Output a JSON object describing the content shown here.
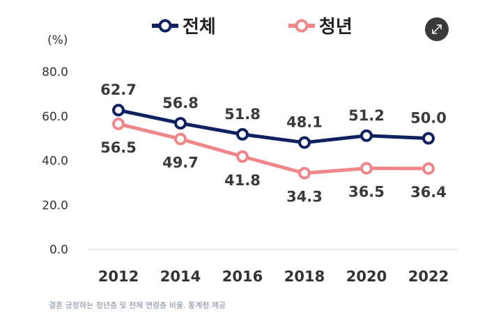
{
  "unit_label": "(%)",
  "caption": "결혼 긍정하는 청년층 및 전체 연령층 비율. 통계청 제공",
  "expand_icon": "expand-icon",
  "colors": {
    "total": "#0f2160",
    "youth": "#f0868a"
  },
  "chart_data": {
    "type": "line",
    "x": [
      "2012",
      "2014",
      "2016",
      "2018",
      "2020",
      "2022"
    ],
    "yticks": [
      "0.0",
      "20.0",
      "40.0",
      "60.0",
      "80.0"
    ],
    "ylim": [
      0,
      80
    ],
    "series": [
      {
        "name": "전체",
        "values": [
          62.7,
          56.8,
          51.8,
          48.1,
          51.2,
          50.0
        ],
        "labels": [
          "62.7",
          "56.8",
          "51.8",
          "48.1",
          "51.2",
          "50.0"
        ]
      },
      {
        "name": "청년",
        "values": [
          56.5,
          49.7,
          41.8,
          34.3,
          36.5,
          36.4
        ],
        "labels": [
          "56.5",
          "49.7",
          "41.8",
          "34.3",
          "36.5",
          "36.4"
        ]
      }
    ],
    "legend_position": "top-center",
    "grid": false
  }
}
